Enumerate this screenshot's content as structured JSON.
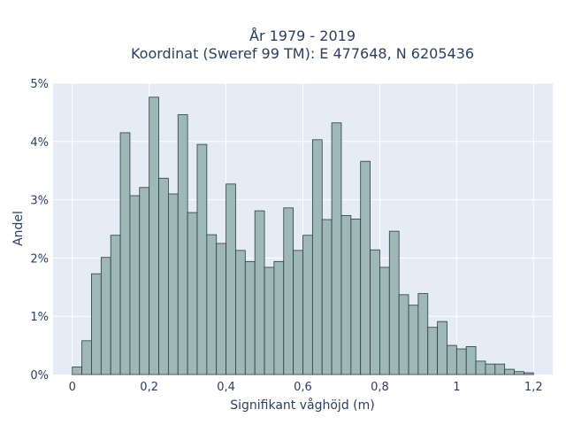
{
  "chart_data": {
    "type": "bar",
    "title": "År 1979 - 2019",
    "subtitle": "Koordinat (Sweref 99 TM): E 477648, N 6205436",
    "xlabel": "Signifikant våghöjd (m)",
    "ylabel": "Andel",
    "xlim": [
      -0.05,
      1.25
    ],
    "ylim": [
      0,
      5
    ],
    "x_ticks": [
      0,
      0.2,
      0.4,
      0.6,
      0.8,
      1.0,
      1.2
    ],
    "x_tick_labels": [
      "0",
      "0,2",
      "0,4",
      "0,6",
      "0,8",
      "1",
      "1,2"
    ],
    "y_ticks": [
      0,
      1,
      2,
      3,
      4,
      5
    ],
    "y_tick_labels": [
      "0%",
      "1%",
      "2%",
      "3%",
      "4%",
      "5%"
    ],
    "bin_width": 0.025,
    "bin_starts": [
      0.0,
      0.025,
      0.05,
      0.075,
      0.1,
      0.125,
      0.15,
      0.175,
      0.2,
      0.225,
      0.25,
      0.275,
      0.3,
      0.325,
      0.35,
      0.375,
      0.4,
      0.425,
      0.45,
      0.475,
      0.5,
      0.525,
      0.55,
      0.575,
      0.6,
      0.625,
      0.65,
      0.675,
      0.7,
      0.725,
      0.75,
      0.775,
      0.8,
      0.825,
      0.85,
      0.875,
      0.9,
      0.925,
      0.95,
      0.975,
      1.0,
      1.025,
      1.05,
      1.075,
      1.1,
      1.125,
      1.15,
      1.175
    ],
    "values": [
      0.13,
      0.58,
      1.73,
      2.01,
      2.39,
      4.15,
      3.07,
      3.21,
      4.76,
      3.37,
      3.1,
      4.46,
      2.78,
      3.95,
      2.4,
      2.25,
      3.27,
      2.13,
      1.94,
      2.81,
      1.84,
      1.94,
      2.86,
      2.13,
      2.39,
      4.03,
      2.66,
      4.32,
      2.73,
      2.67,
      3.66,
      2.14,
      1.84,
      2.46,
      1.37,
      1.19,
      1.39,
      0.81,
      0.91,
      0.5,
      0.44,
      0.48,
      0.23,
      0.18,
      0.18,
      0.09,
      0.05,
      0.03
    ],
    "grid": true,
    "legend": "none"
  },
  "colors": {
    "plot_background": "#e5ecf6",
    "bar_fill": "#9eb8b7",
    "bar_edge": "#2f3b3a",
    "grid": "#ffffff",
    "text": "#2a3f5f"
  }
}
